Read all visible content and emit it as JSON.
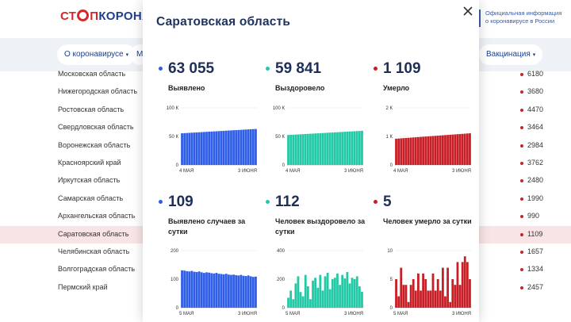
{
  "header": {
    "logo_part1": "СТ",
    "logo_part2": "П",
    "logo_part3": "КОРОНАВИ",
    "official_line1": "Официальная информация",
    "official_line2": "о коронавирусе в России"
  },
  "nav": {
    "about": "О коронавирусе",
    "partial": "М",
    "vaccination": "Вакцинация"
  },
  "regions": [
    {
      "name": "Московская область",
      "value": "6180"
    },
    {
      "name": "Нижегородская область",
      "value": "3680"
    },
    {
      "name": "Ростовская область",
      "value": "4470"
    },
    {
      "name": "Свердловская область",
      "value": "3464"
    },
    {
      "name": "Воронежская область",
      "value": "2984"
    },
    {
      "name": "Красноярский край",
      "value": "3762"
    },
    {
      "name": "Иркутская область",
      "value": "2480"
    },
    {
      "name": "Самарская область",
      "value": "1990"
    },
    {
      "name": "Архангельская область",
      "value": "990"
    },
    {
      "name": "Саратовская область",
      "value": "1109"
    },
    {
      "name": "Челябинская область",
      "value": "1657"
    },
    {
      "name": "Волгоградская область",
      "value": "1334"
    },
    {
      "name": "Пермский край",
      "value": "2457"
    }
  ],
  "modal": {
    "title": "Саратовская область",
    "stats": [
      {
        "value": "63 055",
        "label": "Выявлено",
        "color": "#2f5ee8"
      },
      {
        "value": "59 841",
        "label": "Выздоровело",
        "color": "#22c9a6"
      },
      {
        "value": "1 109",
        "label": "Умерло",
        "color": "#c81e25"
      },
      {
        "value": "109",
        "label": "Выявлено случаев за сутки",
        "color": "#2f5ee8"
      },
      {
        "value": "112",
        "label": "Человек выздоровело за сутки",
        "color": "#22c9a6"
      },
      {
        "value": "5",
        "label": "Человек умерло за сутки",
        "color": "#c81e25"
      }
    ]
  },
  "chart_data": [
    {
      "type": "bar",
      "series_color": "#2f5ee8",
      "x_start": "4 МАЯ",
      "x_end": "3 ИЮНЯ",
      "yticks": [
        "100 К",
        "50 К",
        "0"
      ],
      "ylim": [
        0,
        100000
      ],
      "first": 55500,
      "last": 63055,
      "noise": 0,
      "count": 31
    },
    {
      "type": "bar",
      "series_color": "#22c9a6",
      "x_start": "4 МАЯ",
      "x_end": "3 ИЮНЯ",
      "yticks": [
        "100 К",
        "50 К",
        "0"
      ],
      "ylim": [
        0,
        100000
      ],
      "first": 52500,
      "last": 59841,
      "noise": 0,
      "count": 31
    },
    {
      "type": "bar",
      "series_color": "#c81e25",
      "x_start": "4 МАЯ",
      "x_end": "3 ИЮНЯ",
      "yticks": [
        "2 К",
        "1 К",
        "0"
      ],
      "ylim": [
        0,
        2000
      ],
      "first": 920,
      "last": 1109,
      "noise": 0,
      "count": 31
    },
    {
      "type": "bar",
      "series_color": "#2f5ee8",
      "x_start": "5 МАЯ",
      "x_end": "3 ИЮНЯ",
      "yticks": [
        "200",
        "100",
        "0"
      ],
      "ylim": [
        0,
        200
      ],
      "values": [
        131,
        130,
        128,
        127,
        129,
        126,
        125,
        127,
        124,
        122,
        124,
        123,
        121,
        120,
        122,
        119,
        118,
        117,
        119,
        116,
        115,
        116,
        114,
        113,
        115,
        112,
        111,
        113,
        110,
        108,
        109
      ]
    },
    {
      "type": "bar",
      "series_color": "#22c9a6",
      "x_start": "5 МАЯ",
      "x_end": "3 ИЮНЯ",
      "yticks": [
        "400",
        "200",
        "0"
      ],
      "ylim": [
        0,
        400
      ],
      "values": [
        70,
        120,
        60,
        170,
        220,
        110,
        80,
        230,
        150,
        60,
        190,
        210,
        140,
        230,
        120,
        220,
        245,
        130,
        200,
        210,
        240,
        160,
        230,
        205,
        250,
        170,
        210,
        200,
        220,
        150,
        112
      ]
    },
    {
      "type": "bar",
      "series_color": "#c81e25",
      "x_start": "5 МАЯ",
      "x_end": "3 ИЮНЯ",
      "yticks": [
        "10",
        "5",
        "0"
      ],
      "ylim": [
        0,
        10
      ],
      "values": [
        5,
        2,
        7,
        4,
        4,
        1,
        4,
        5,
        3,
        6,
        3,
        6,
        5,
        3,
        3,
        6,
        3,
        5,
        3,
        7,
        2,
        7,
        1,
        5,
        4,
        8,
        4,
        8,
        9,
        8,
        5
      ]
    }
  ]
}
